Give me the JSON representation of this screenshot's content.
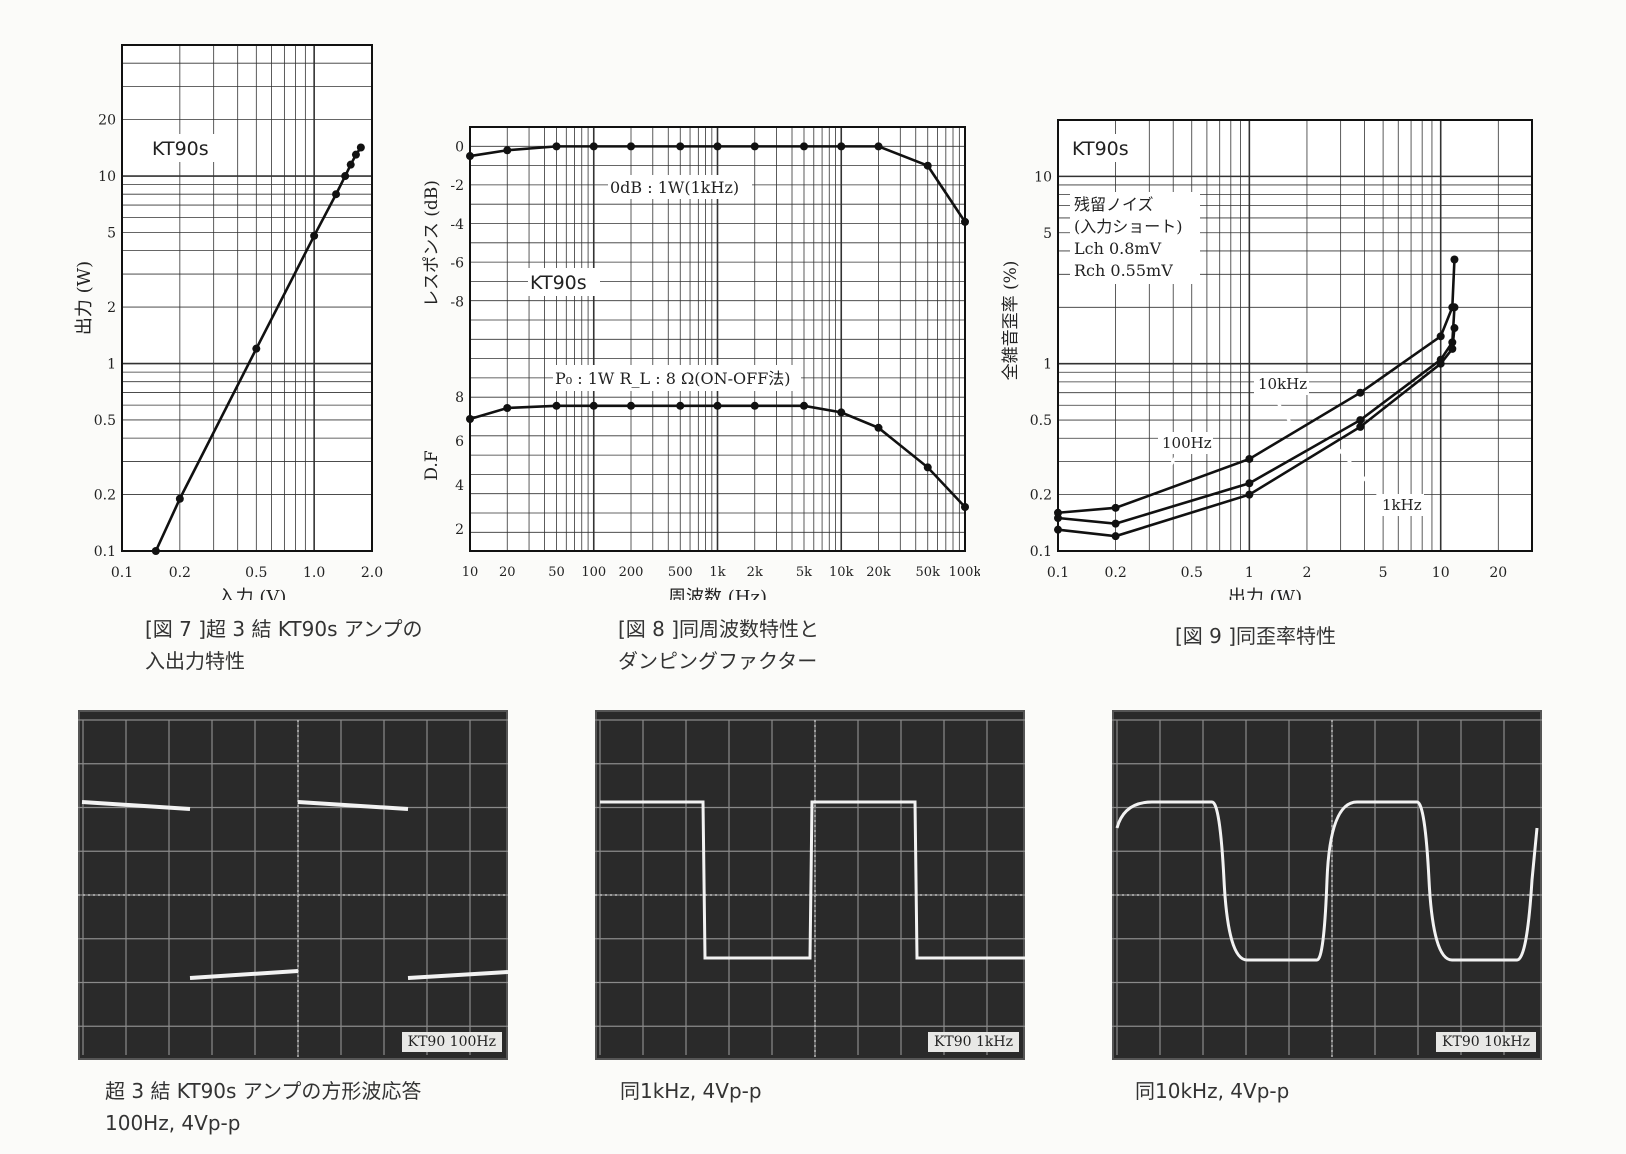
{
  "chart_data": [
    {
      "type": "line",
      "id": "fig7",
      "title": "KT90s",
      "xlabel": "入力 (V)",
      "ylabel": "出力 (W)",
      "xscale": "log",
      "yscale": "log",
      "xlim": [
        0.1,
        2.0
      ],
      "ylim": [
        0.1,
        50
      ],
      "xticks": [
        0.1,
        0.2,
        0.5,
        1.0,
        2.0
      ],
      "xtick_labels": [
        "0.1",
        "0.2",
        "0.5",
        "1.0",
        "2.0"
      ],
      "yticks": [
        0.1,
        0.2,
        0.5,
        1,
        2,
        5,
        10,
        20
      ],
      "ytick_labels": [
        "0.1",
        "0.2",
        "0.5",
        "1",
        "2",
        "5",
        "10",
        "20"
      ],
      "series": [
        {
          "name": "",
          "x": [
            0.15,
            0.2,
            0.5,
            1.0,
            1.3,
            1.45,
            1.55,
            1.65,
            1.75
          ],
          "y": [
            0.1,
            0.19,
            1.2,
            4.8,
            8,
            10,
            11.5,
            13,
            14.2
          ]
        }
      ],
      "caption": "[図 7 ]超 3 結 KT90s アンプの\n入出力特性"
    },
    {
      "type": "line",
      "id": "fig8",
      "title": "KT90s",
      "xlabel": "周波数 (Hz)",
      "ylabel_top": "レスポンス (dB)",
      "ylabel_bottom": "D.F",
      "xscale": "log",
      "xlim": [
        10,
        100000
      ],
      "xticks": [
        10,
        20,
        50,
        100,
        200,
        500,
        1000,
        2000,
        5000,
        10000,
        20000,
        50000,
        100000
      ],
      "xtick_labels": [
        "10",
        "20",
        "50",
        "100",
        "200",
        "500",
        "1k",
        "2k",
        "5k",
        "10k",
        "20k",
        "50k",
        "100k"
      ],
      "top_ylim": [
        -10,
        1
      ],
      "top_yticks": [
        0,
        -2,
        -4,
        -6,
        -8
      ],
      "top_ytick_labels": [
        "0",
        "-2",
        "-4",
        "-6",
        "-8"
      ],
      "bottom_ylim": [
        1,
        9
      ],
      "bottom_yticks": [
        2,
        4,
        6,
        8
      ],
      "bottom_ytick_labels": [
        "2",
        "4",
        "6",
        "8"
      ],
      "series": [
        {
          "name": "response",
          "panel": "top",
          "x": [
            10,
            20,
            50,
            100,
            200,
            500,
            1000,
            2000,
            5000,
            10000,
            20000,
            50000,
            100000
          ],
          "y": [
            -0.5,
            -0.2,
            0,
            0,
            0,
            0,
            0,
            0,
            0,
            0,
            0,
            -1.0,
            -3.9
          ]
        },
        {
          "name": "D.F",
          "panel": "bottom",
          "x": [
            10,
            20,
            50,
            100,
            200,
            500,
            1000,
            2000,
            5000,
            10000,
            20000,
            50000,
            100000
          ],
          "y": [
            7.0,
            7.5,
            7.6,
            7.6,
            7.6,
            7.6,
            7.6,
            7.6,
            7.6,
            7.3,
            6.6,
            4.8,
            3.0
          ]
        }
      ],
      "annotations": {
        "top": "0dB : 1W(1kHz)",
        "bottom": "P₀ : 1W  R_L : 8 Ω(ON-OFF法)"
      },
      "caption": "[図 8 ]同周波数特性と\nダンピングファクター"
    },
    {
      "type": "line",
      "id": "fig9",
      "title": "KT90s",
      "xlabel": "出力 (W)",
      "ylabel": "全雑音歪率 (%)",
      "xscale": "log",
      "yscale": "log",
      "xlim": [
        0.1,
        30
      ],
      "ylim": [
        0.1,
        20
      ],
      "xticks": [
        0.1,
        0.2,
        0.5,
        1,
        2,
        5,
        10,
        20
      ],
      "xtick_labels": [
        "0.1",
        "0.2",
        "0.5",
        "1",
        "2",
        "5",
        "10",
        "20"
      ],
      "yticks": [
        0.1,
        0.2,
        0.5,
        1,
        5,
        10
      ],
      "ytick_labels": [
        "0.1",
        "0.2",
        "0.5",
        "1",
        "5",
        "10"
      ],
      "series": [
        {
          "name": "10kHz",
          "x": [
            0.1,
            0.2,
            1,
            3.8,
            10,
            11.5,
            11.8
          ],
          "y": [
            0.16,
            0.17,
            0.31,
            0.7,
            1.4,
            2.0,
            3.6
          ]
        },
        {
          "name": "100Hz",
          "x": [
            0.1,
            0.2,
            1,
            3.8,
            10,
            11.5,
            11.8
          ],
          "y": [
            0.15,
            0.14,
            0.23,
            0.5,
            1.05,
            1.3,
            2.0
          ]
        },
        {
          "name": "1kHz",
          "x": [
            0.1,
            0.2,
            1,
            3.8,
            10,
            11.5,
            11.8
          ],
          "y": [
            0.13,
            0.12,
            0.2,
            0.46,
            1.0,
            1.2,
            1.55
          ]
        }
      ],
      "annotations": {
        "noise_lines": [
          "残留ノイズ",
          "(入力ショート)",
          "Lch 0.8mV",
          "Rch 0.55mV"
        ]
      },
      "caption": "[図 9 ]同歪率特性"
    }
  ],
  "scopes": [
    {
      "label": "KT90 100Hz",
      "caption": "超 3 結 KT90s アンプの方形波応答\n100Hz,  4Vp-p"
    },
    {
      "label": "KT90 1kHz",
      "caption": "同1kHz,  4Vp-p"
    },
    {
      "label": "KT90 10kHz",
      "caption": "同10kHz,  4Vp-p"
    }
  ]
}
